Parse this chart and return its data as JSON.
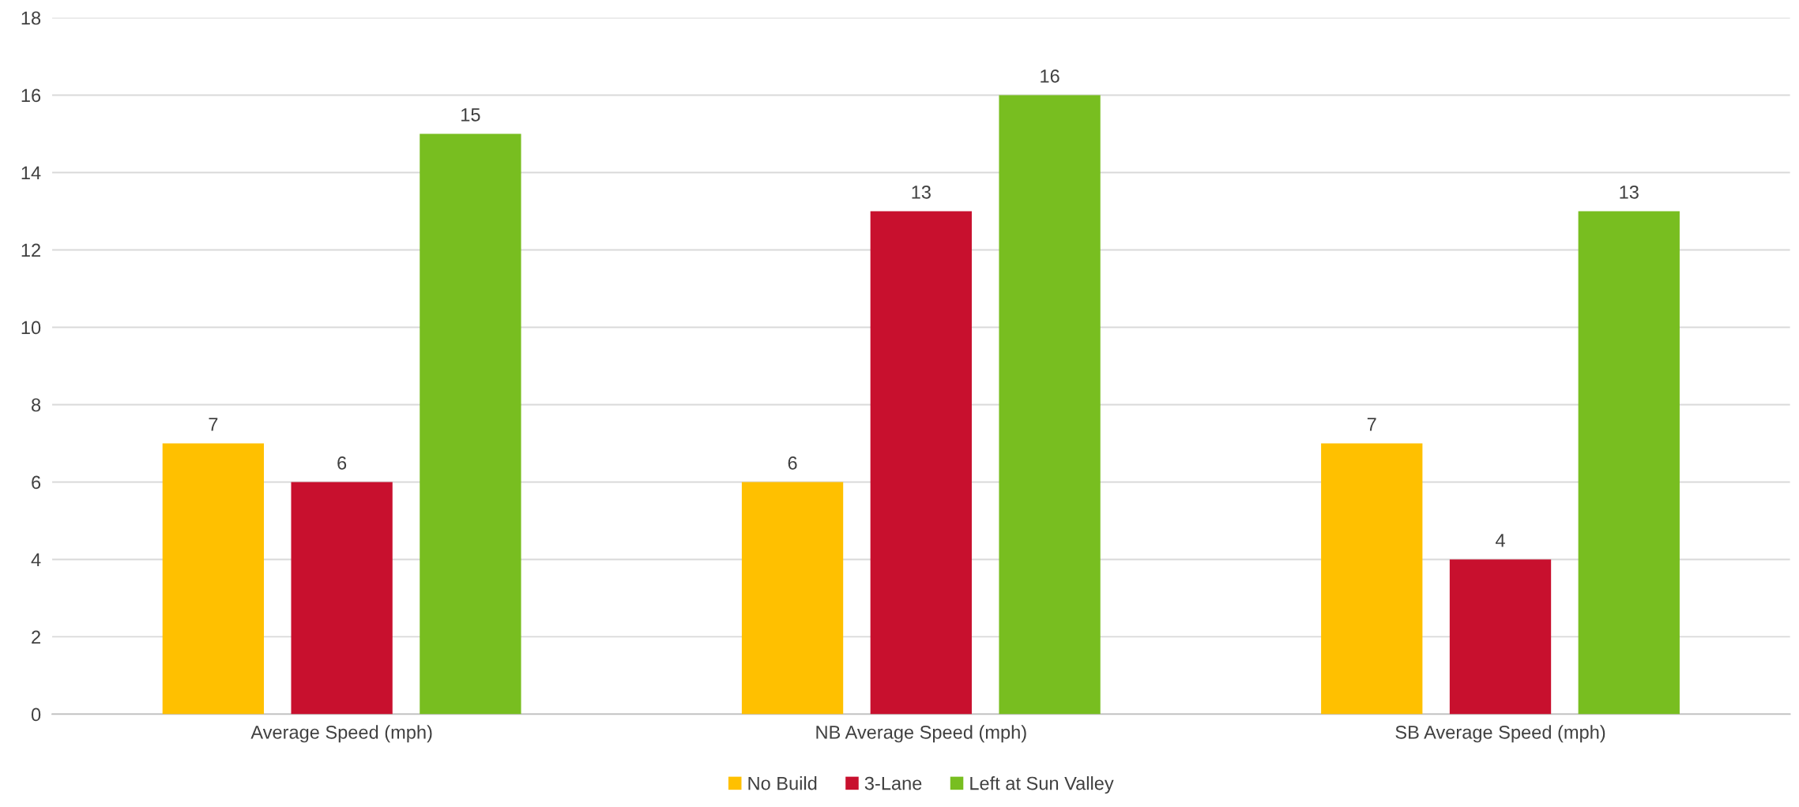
{
  "chart_data": {
    "type": "bar",
    "categories": [
      "Average Speed (mph)",
      "NB Average Speed (mph)",
      "SB Average Speed (mph)"
    ],
    "series": [
      {
        "name": "No Build",
        "color": "#ffc000",
        "values": [
          7,
          6,
          7
        ]
      },
      {
        "name": "3-Lane",
        "color": "#c8102e",
        "values": [
          6,
          13,
          4
        ]
      },
      {
        "name": "Left at Sun Valley",
        "color": "#78be20",
        "values": [
          15,
          16,
          13
        ]
      }
    ],
    "ylim": [
      0,
      18
    ],
    "yticks": [
      0,
      2,
      4,
      6,
      8,
      10,
      12,
      14,
      16,
      18
    ],
    "grid": "y",
    "legend": "bottom",
    "data_labels": true
  }
}
